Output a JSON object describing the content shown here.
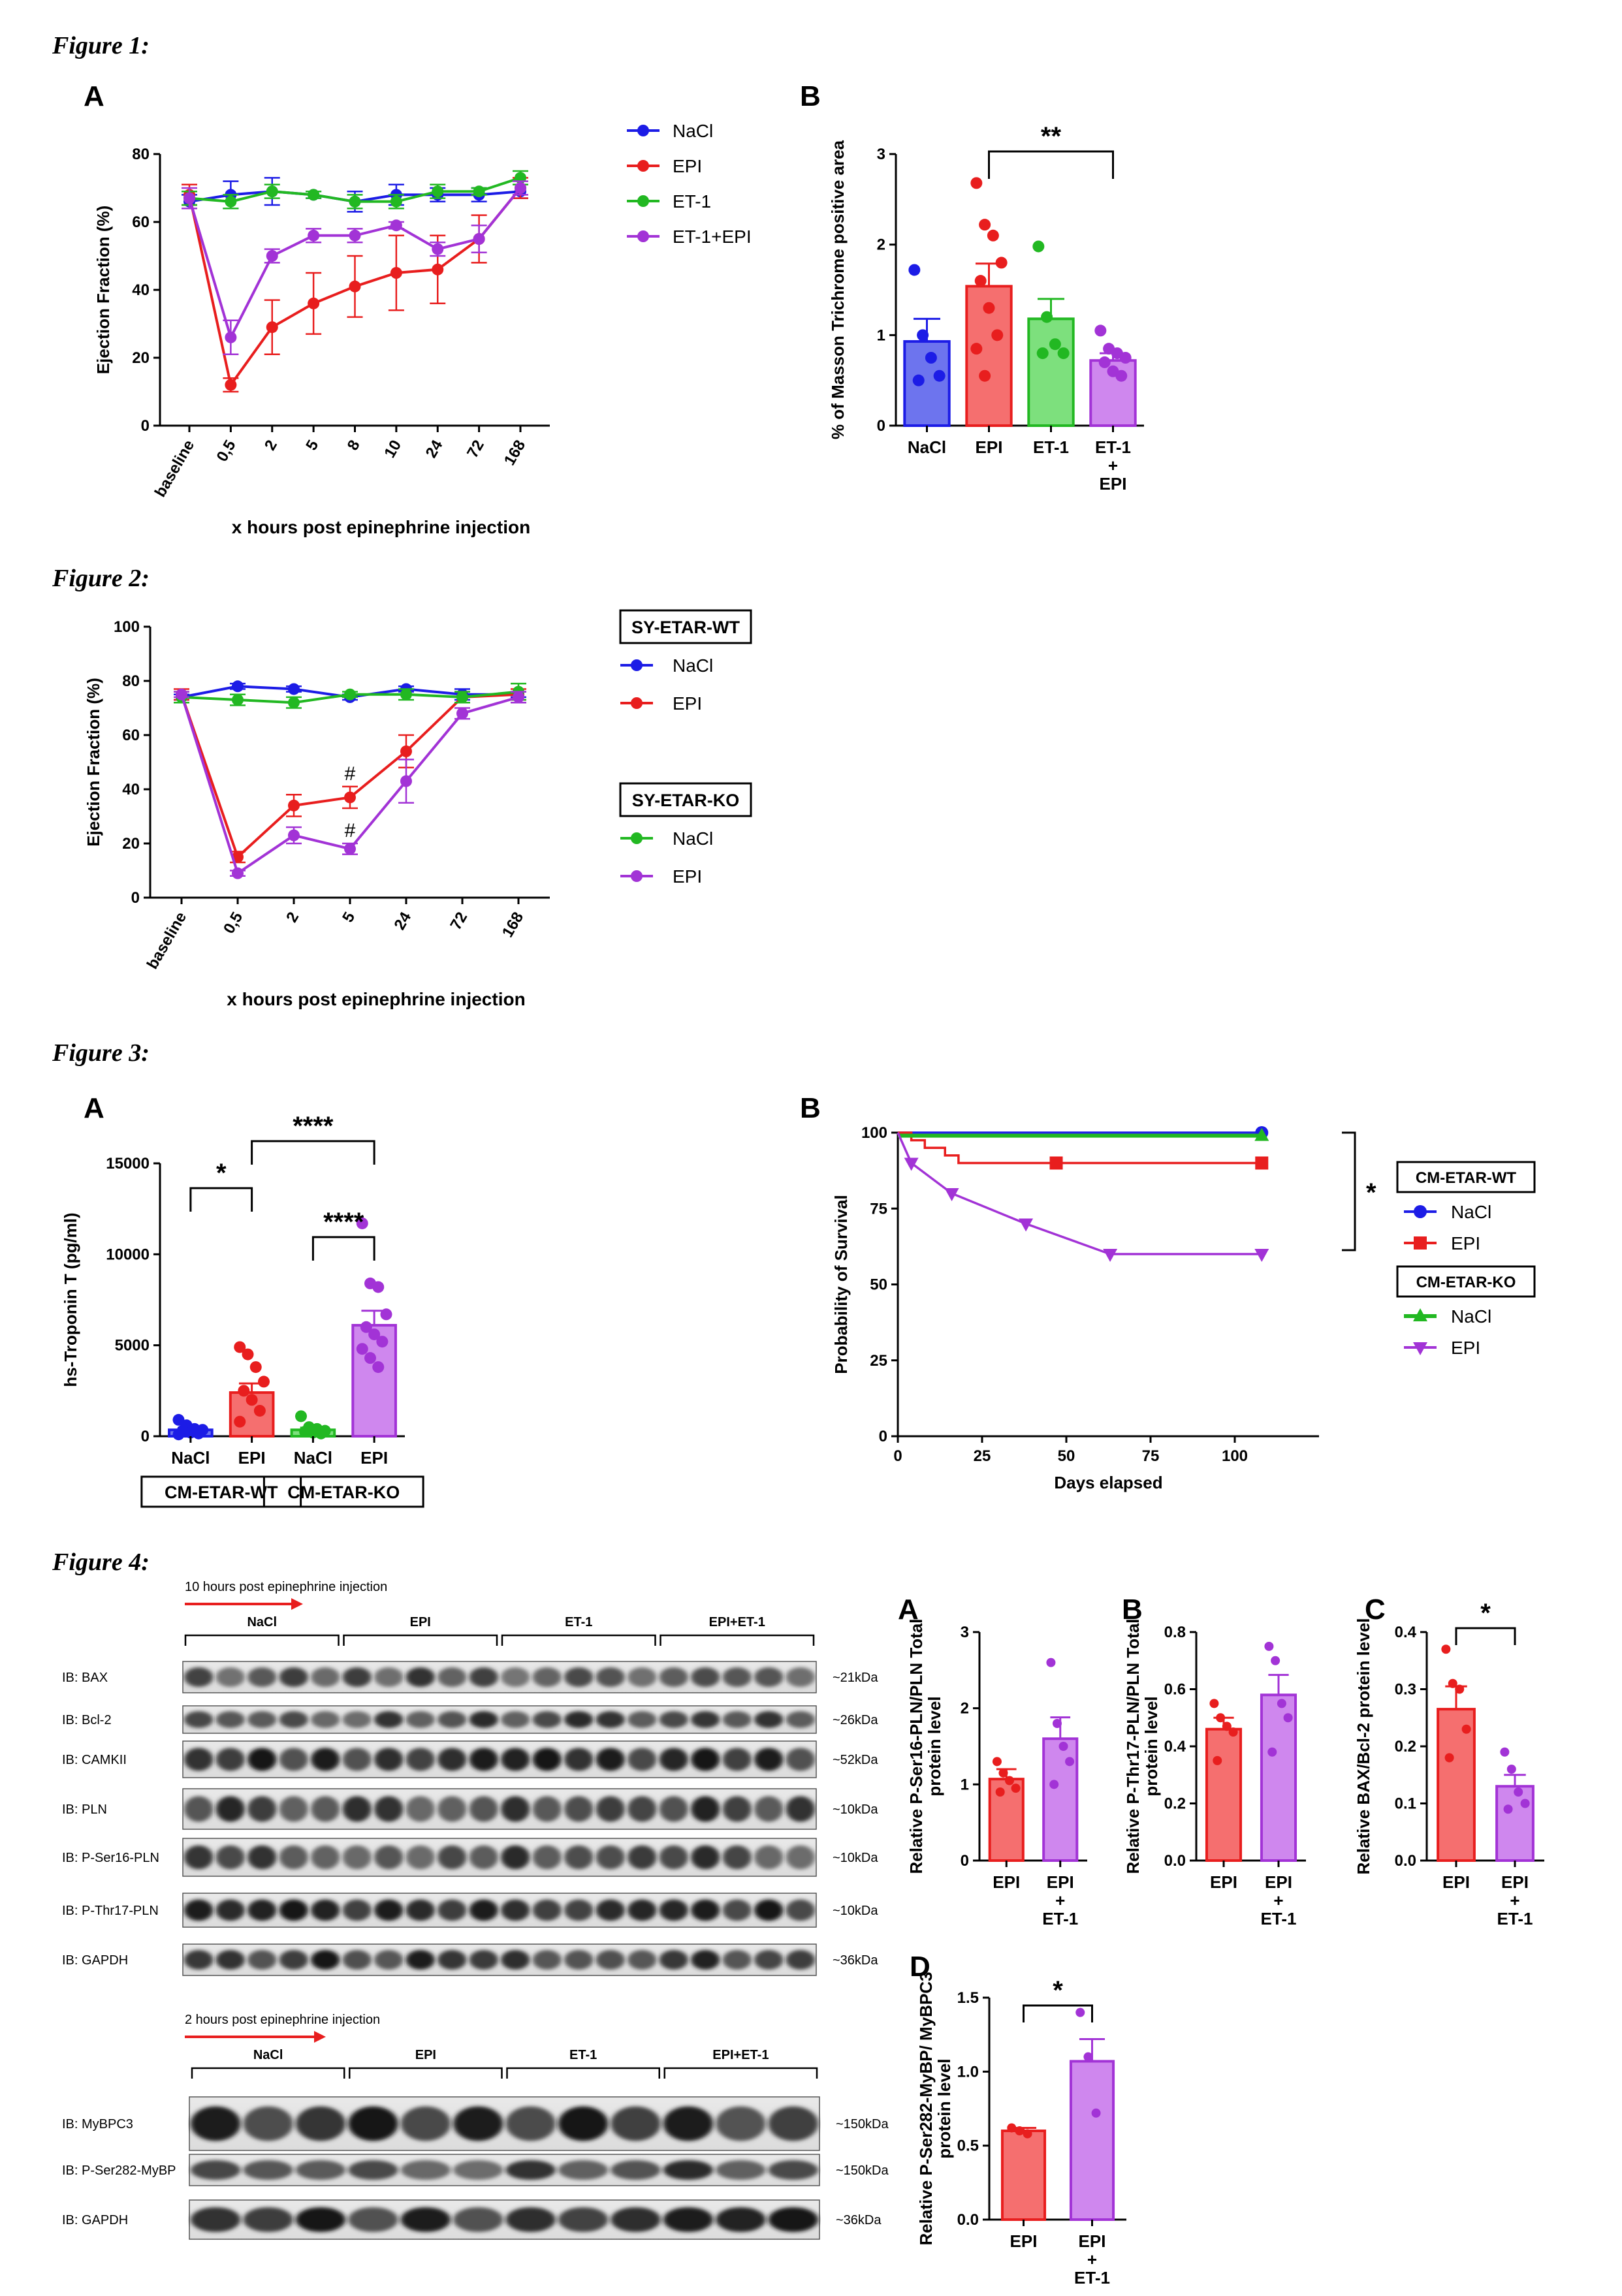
{
  "figure_titles": [
    "Figure 1:",
    "Figure 2:",
    "Figure 3:",
    "Figure 4:"
  ],
  "colors": {
    "NaCl": "#1c1ce6",
    "EPI": "#e81e1e",
    "ET-1": "#22b822",
    "ET-1+EPI": "#a233d6",
    "bar_blue": "#6d74ee",
    "bar_red": "#f56f6f",
    "bar_green": "#7de07d",
    "bar_purple": "#cf87ee"
  },
  "chart_data": [
    {
      "id": "fig1A",
      "type": "line",
      "panel": "A",
      "categories": [
        "baseline",
        "0,5",
        "2",
        "5",
        "8",
        "10",
        "24",
        "72",
        "168"
      ],
      "ylabel": "Ejection Fraction (%)",
      "xlabel": "x hours post epinephrine injection",
      "ylim": [
        0,
        80
      ],
      "yticks": [
        "0",
        "20",
        "40",
        "60",
        "80"
      ],
      "legend": [
        "NaCl",
        "EPI",
        "ET-1",
        "ET-1+EPI"
      ],
      "legend_position": "right",
      "series": [
        {
          "name": "NaCl",
          "values": [
            66,
            68,
            69,
            68,
            66,
            68,
            68,
            68,
            69
          ],
          "err": [
            2,
            4,
            4,
            1,
            3,
            3,
            2,
            2,
            2
          ]
        },
        {
          "name": "EPI",
          "values": [
            68,
            12,
            29,
            36,
            41,
            45,
            46,
            55,
            70
          ],
          "err": [
            3,
            2,
            8,
            9,
            9,
            11,
            10,
            7,
            3
          ]
        },
        {
          "name": "ET-1",
          "values": [
            67,
            66,
            69,
            68,
            66,
            66,
            69,
            69,
            73
          ],
          "err": [
            2,
            2,
            2,
            1,
            2,
            2,
            2,
            1,
            2
          ]
        },
        {
          "name": "ET-1+EPI",
          "values": [
            67,
            26,
            50,
            56,
            56,
            59,
            52,
            55,
            70
          ],
          "err": [
            3,
            5,
            2,
            2,
            2,
            1,
            2,
            4,
            2
          ]
        }
      ]
    },
    {
      "id": "fig1B",
      "type": "bar",
      "panel": "B",
      "categories": [
        "NaCl",
        "EPI",
        "ET-1",
        "ET-1\n+\nEPI"
      ],
      "ylabel": "% of Masson Trichrome positive area",
      "ylim": [
        0,
        3
      ],
      "yticks": [
        "0",
        "1",
        "2",
        "3"
      ],
      "values": [
        0.93,
        1.54,
        1.18,
        0.72
      ],
      "err": [
        0.25,
        0.25,
        0.22,
        0.08
      ],
      "points": [
        [
          1.72,
          1.0,
          0.75,
          0.55,
          0.5
        ],
        [
          2.68,
          2.22,
          2.1,
          1.8,
          1.6,
          1.3,
          1.0,
          0.85,
          0.55
        ],
        [
          1.98,
          1.2,
          0.9,
          0.8,
          0.8
        ],
        [
          1.05,
          0.85,
          0.8,
          0.75,
          0.7,
          0.6,
          0.55
        ]
      ],
      "significance": [
        {
          "from": 1,
          "to": 3,
          "label": "**"
        }
      ]
    },
    {
      "id": "fig2",
      "type": "line",
      "categories": [
        "baseline",
        "0,5",
        "2",
        "5",
        "24",
        "72",
        "168"
      ],
      "ylabel": "Ejection Fraction (%)",
      "xlabel": "x hours post epinephrine injection",
      "ylim": [
        0,
        100
      ],
      "yticks": [
        "0",
        "20",
        "40",
        "60",
        "80",
        "100"
      ],
      "legend_groups": [
        {
          "title": "SY-ETAR-WT",
          "items": [
            "NaCl",
            "EPI"
          ]
        },
        {
          "title": "SY-ETAR-KO",
          "items": [
            "NaCl",
            "EPI"
          ]
        }
      ],
      "annotations": [
        {
          "x": "5",
          "series": 1,
          "text": "#"
        },
        {
          "x": "5",
          "series": 3,
          "text": "#"
        }
      ],
      "series": [
        {
          "name": "NaCl",
          "group": "SY-ETAR-WT",
          "values": [
            74,
            78,
            77,
            74,
            77,
            75,
            75
          ],
          "err": [
            1,
            1,
            1,
            1,
            1,
            2,
            1
          ]
        },
        {
          "name": "EPI",
          "group": "SY-ETAR-WT",
          "values": [
            75,
            15,
            34,
            37,
            54,
            74,
            75
          ],
          "err": [
            2,
            2,
            4,
            4,
            6,
            2,
            2
          ]
        },
        {
          "name": "NaCl",
          "group": "SY-ETAR-KO",
          "values": [
            74,
            73,
            72,
            75,
            75,
            74,
            76
          ],
          "err": [
            2,
            2,
            2,
            1,
            2,
            2,
            3
          ]
        },
        {
          "name": "EPI",
          "group": "SY-ETAR-KO",
          "values": [
            75,
            9,
            23,
            18,
            43,
            68,
            74
          ],
          "err": [
            1,
            1,
            3,
            2,
            8,
            2,
            2
          ]
        }
      ]
    },
    {
      "id": "fig3A",
      "type": "bar",
      "panel": "A",
      "categories": [
        "NaCl",
        "EPI",
        "NaCl",
        "EPI"
      ],
      "groups": [
        "CM-ETAR-WT",
        "CM-ETAR-KO"
      ],
      "ylabel": "hs-Troponin T (pg/ml)",
      "ylim": [
        0,
        15000
      ],
      "yticks": [
        "0",
        "5000",
        "10000",
        "15000"
      ],
      "values": [
        350,
        2400,
        350,
        6100
      ],
      "err": [
        120,
        500,
        120,
        800
      ],
      "points": [
        [
          900,
          600,
          400,
          350,
          300,
          200,
          150,
          100
        ],
        [
          4900,
          4500,
          3800,
          3000,
          2500,
          2000,
          1400,
          800
        ],
        [
          1100,
          500,
          400,
          300,
          250,
          200,
          150
        ],
        [
          11700,
          8400,
          8200,
          6700,
          6000,
          5600,
          5200,
          4800,
          4300,
          3800
        ]
      ],
      "significance": [
        {
          "from": 0,
          "to": 1,
          "label": "*"
        },
        {
          "from": 2,
          "to": 3,
          "label": "****"
        },
        {
          "from": 1,
          "to": 3,
          "label": "****"
        }
      ]
    },
    {
      "id": "fig3B",
      "type": "line",
      "panel": "B",
      "xlabel": "Days elapsed",
      "ylabel": "Probability of Survival",
      "xlim": [
        0,
        125
      ],
      "ylim": [
        0,
        100
      ],
      "xticks": [
        "0",
        "25",
        "50",
        "75",
        "100"
      ],
      "yticks": [
        "0",
        "25",
        "50",
        "75",
        "100"
      ],
      "legend_groups": [
        {
          "title": "CM-ETAR-WT",
          "items": [
            "NaCl",
            "EPI"
          ]
        },
        {
          "title": "CM-ETAR-KO",
          "items": [
            "NaCl",
            "EPI"
          ]
        }
      ],
      "significance_label": "*",
      "series": [
        {
          "name": "NaCl",
          "group": "CM-ETAR-WT",
          "steps": [
            [
              0,
              100
            ],
            [
              108,
              100
            ]
          ],
          "markers": [
            [
              108,
              100
            ]
          ]
        },
        {
          "name": "EPI",
          "group": "CM-ETAR-WT",
          "steps": [
            [
              0,
              100
            ],
            [
              4,
              97.5
            ],
            [
              8,
              95
            ],
            [
              14,
              92.5
            ],
            [
              18,
              90
            ],
            [
              108,
              90
            ]
          ],
          "markers": [
            [
              47,
              90
            ],
            [
              108,
              90
            ]
          ]
        },
        {
          "name": "NaCl",
          "group": "CM-ETAR-KO",
          "steps": [
            [
              0,
              99
            ],
            [
              108,
              99
            ]
          ],
          "markers": [
            [
              108,
              99
            ]
          ]
        },
        {
          "name": "EPI",
          "group": "CM-ETAR-KO",
          "steps": [
            [
              0,
              100
            ],
            [
              4,
              90
            ],
            [
              16,
              80
            ],
            [
              38,
              70
            ],
            [
              63,
              60
            ],
            [
              108,
              60
            ]
          ],
          "markers": [
            [
              4,
              90
            ],
            [
              16,
              80
            ],
            [
              38,
              70
            ],
            [
              63,
              60
            ],
            [
              108,
              60
            ]
          ]
        }
      ]
    },
    {
      "id": "fig4A",
      "type": "bar",
      "panel": "A",
      "categories": [
        "EPI",
        "EPI\n+\nET-1"
      ],
      "ylabel": "Relative P-Ser16-PLN/PLN Total protein level",
      "ylim": [
        0,
        3
      ],
      "yticks": [
        "0",
        "1",
        "2",
        "3"
      ],
      "values": [
        1.07,
        1.6
      ],
      "err": [
        0.13,
        0.28
      ],
      "points": [
        [
          1.3,
          1.15,
          1.05,
          0.95,
          0.9
        ],
        [
          2.6,
          1.8,
          1.5,
          1.3,
          1.0
        ]
      ]
    },
    {
      "id": "fig4B",
      "type": "bar",
      "panel": "B",
      "categories": [
        "EPI",
        "EPI\n+\nET-1"
      ],
      "ylabel": "Relative P-Thr17-PLN/PLN Total protein level",
      "ylim": [
        0,
        0.8
      ],
      "yticks": [
        "0.0",
        "0.2",
        "0.4",
        "0.6",
        "0.8"
      ],
      "values": [
        0.46,
        0.58
      ],
      "err": [
        0.04,
        0.07
      ],
      "points": [
        [
          0.55,
          0.5,
          0.47,
          0.45,
          0.35
        ],
        [
          0.75,
          0.7,
          0.55,
          0.5,
          0.38
        ]
      ]
    },
    {
      "id": "fig4C",
      "type": "bar",
      "panel": "C",
      "categories": [
        "EPI",
        "EPI\n+\nET-1"
      ],
      "ylabel": "Relative BAX/Bcl-2 protein level",
      "ylim": [
        0,
        0.4
      ],
      "yticks": [
        "0.0",
        "0.1",
        "0.2",
        "0.3",
        "0.4"
      ],
      "values": [
        0.265,
        0.13
      ],
      "err": [
        0.04,
        0.02
      ],
      "points": [
        [
          0.37,
          0.31,
          0.3,
          0.23,
          0.18
        ],
        [
          0.19,
          0.16,
          0.12,
          0.1,
          0.09
        ]
      ],
      "significance": [
        {
          "from": 0,
          "to": 1,
          "label": "*"
        }
      ]
    },
    {
      "id": "fig4D",
      "type": "bar",
      "panel": "D",
      "categories": [
        "EPI",
        "EPI\n+\nET-1"
      ],
      "ylabel": "Relative P-Ser282-MyBP/ MyBPC3 protein level",
      "ylim": [
        0,
        1.5
      ],
      "yticks": [
        "0.0",
        "0.5",
        "1.0",
        "1.5"
      ],
      "values": [
        0.6,
        1.07
      ],
      "err": [
        0.02,
        0.15
      ],
      "points": [
        [
          0.62,
          0.6,
          0.58
        ],
        [
          1.4,
          1.1,
          0.72
        ]
      ],
      "significance": [
        {
          "from": 0,
          "to": 1,
          "label": "*"
        }
      ]
    }
  ],
  "blot1": {
    "title": "10 hours post epinephrine injection",
    "groups": [
      "NaCl",
      "EPI",
      "ET-1",
      "EPI+ET-1"
    ],
    "lanes_per_group": 5,
    "rows": [
      {
        "label": "IB: BAX",
        "kda": "~21kDa"
      },
      {
        "label": "IB: Bcl-2",
        "kda": "~26kDa"
      },
      {
        "label": "IB: CAMKII",
        "kda": "~52kDa"
      },
      {
        "label": "IB: PLN",
        "kda": "~10kDa"
      },
      {
        "label": "IB: P-Ser16-PLN",
        "kda": "~10kDa"
      },
      {
        "label": "IB: P-Thr17-PLN",
        "kda": "~10kDa"
      },
      {
        "label": "IB: GAPDH",
        "kda": "~36kDa"
      }
    ]
  },
  "blot2": {
    "title": "2 hours post epinephrine injection",
    "groups": [
      "NaCl",
      "EPI",
      "ET-1",
      "EPI+ET-1"
    ],
    "lanes_per_group": 3,
    "rows": [
      {
        "label": "IB: MyBPC3",
        "kda": "~150kDa"
      },
      {
        "label": "IB: P-Ser282-MyBP",
        "kda": "~150kDa"
      },
      {
        "label": "IB: GAPDH",
        "kda": "~36kDa"
      }
    ]
  }
}
